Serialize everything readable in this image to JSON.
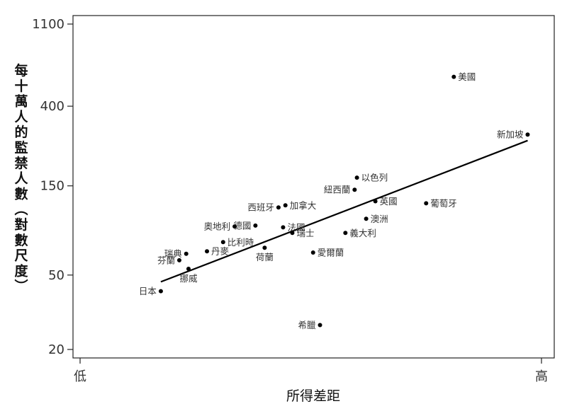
{
  "chart_data": {
    "type": "scatter",
    "title": "",
    "xlabel": "所得差距",
    "ylabel": "每十萬人的監禁人數（對數尺度）",
    "y_scale": "log",
    "ylim": [
      18,
      1300
    ],
    "xlim": [
      0,
      100
    ],
    "y_ticks": [
      20,
      50,
      150,
      400,
      1100
    ],
    "x_tick_labels": [
      {
        "value": 0,
        "label": "低"
      },
      {
        "value": 100,
        "label": "高"
      }
    ],
    "grid": false,
    "legend": "none",
    "points": [
      {
        "name": "美國",
        "x": 81,
        "y": 574,
        "label_side": "right"
      },
      {
        "name": "新加坡",
        "x": 97,
        "y": 282,
        "label_side": "left"
      },
      {
        "name": "以色列",
        "x": 60,
        "y": 166,
        "label_side": "right"
      },
      {
        "name": "紐西蘭",
        "x": 59.5,
        "y": 143,
        "label_side": "left"
      },
      {
        "name": "英國",
        "x": 64,
        "y": 124,
        "label_side": "right"
      },
      {
        "name": "葡萄牙",
        "x": 75,
        "y": 121,
        "label_side": "right"
      },
      {
        "name": "加拿大",
        "x": 44.5,
        "y": 118,
        "label_side": "right"
      },
      {
        "name": "西班牙",
        "x": 43,
        "y": 115,
        "label_side": "left"
      },
      {
        "name": "澳洲",
        "x": 62,
        "y": 100,
        "label_side": "right"
      },
      {
        "name": "德國",
        "x": 38,
        "y": 92,
        "label_side": "left"
      },
      {
        "name": "奧地利",
        "x": 33.5,
        "y": 91,
        "label_side": "left"
      },
      {
        "name": "法國",
        "x": 44,
        "y": 90,
        "label_side": "right"
      },
      {
        "name": "瑞士",
        "x": 46,
        "y": 84,
        "label_side": "right"
      },
      {
        "name": "義大利",
        "x": 57.5,
        "y": 84,
        "label_side": "right"
      },
      {
        "name": "比利時",
        "x": 31,
        "y": 75,
        "label_side": "right"
      },
      {
        "name": "丹麥",
        "x": 27.5,
        "y": 67,
        "label_side": "right"
      },
      {
        "name": "荷蘭",
        "x": 40,
        "y": 70,
        "label_side": "below"
      },
      {
        "name": "瑞典",
        "x": 23,
        "y": 65,
        "label_side": "left"
      },
      {
        "name": "愛爾蘭",
        "x": 50.5,
        "y": 66,
        "label_side": "right"
      },
      {
        "name": "芬蘭",
        "x": 21.5,
        "y": 60,
        "label_side": "left"
      },
      {
        "name": "挪威",
        "x": 23.5,
        "y": 54,
        "label_side": "below"
      },
      {
        "name": "日本",
        "x": 17.5,
        "y": 41,
        "label_side": "left"
      },
      {
        "name": "希臘",
        "x": 52,
        "y": 27,
        "label_side": "left"
      }
    ],
    "fit_line": {
      "x": [
        17.5,
        97
      ],
      "y": [
        46,
        262
      ]
    }
  }
}
